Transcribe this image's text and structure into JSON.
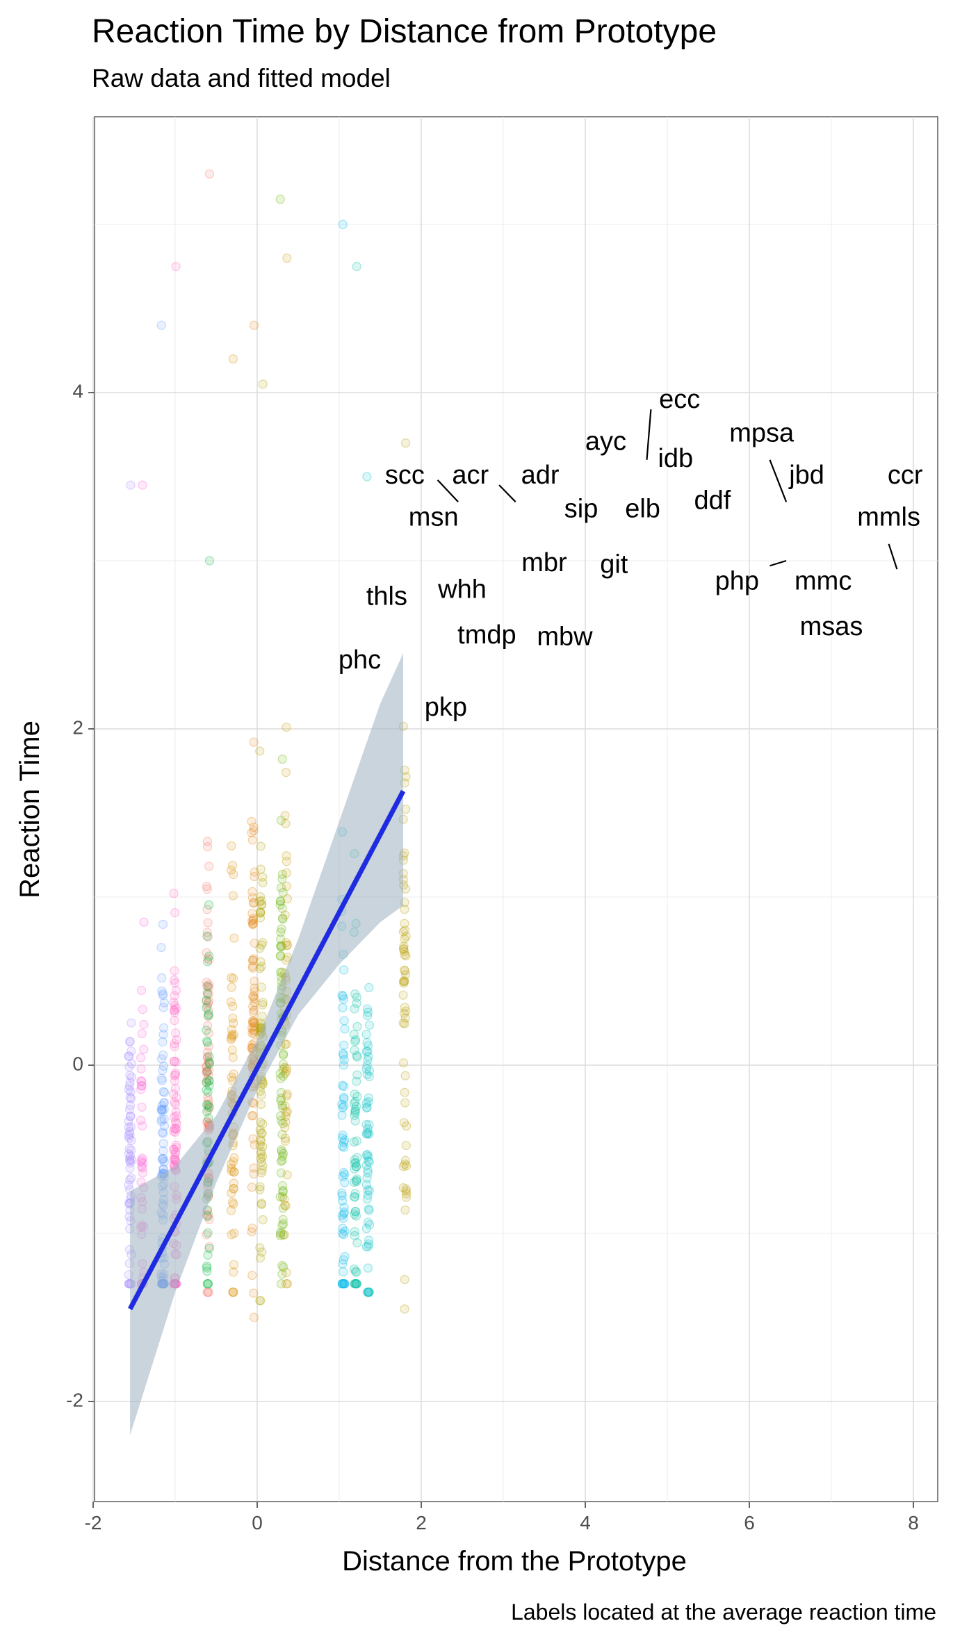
{
  "title": "Reaction Time by Distance from Prototype",
  "subtitle": "Raw data and fitted model",
  "caption": "Labels located at the average reaction time",
  "chart_data": {
    "type": "scatter",
    "title": "Reaction Time by Distance from Prototype",
    "subtitle": "Raw data and fitted model",
    "xlabel": "Distance from the Prototype",
    "ylabel": "Reaction Time",
    "xlim": [
      -2.05,
      8.3
    ],
    "ylim": [
      -2.5,
      5.7
    ],
    "x_ticks": [
      -2,
      0,
      2,
      4,
      6,
      8
    ],
    "y_ticks": [
      -2,
      0,
      2,
      4
    ],
    "grid": true,
    "point_clusters": [
      {
        "x": -1.55,
        "y_center": -0.6,
        "y_sd": 0.55,
        "y_min": -1.3,
        "y_max": 3.45,
        "n": 60,
        "color": "#A58AFF"
      },
      {
        "x": -1.4,
        "y_center": -0.5,
        "y_sd": 0.6,
        "y_min": -1.3,
        "y_max": 3.45,
        "n": 40,
        "color": "#FB61D7"
      },
      {
        "x": -1.15,
        "y_center": -0.55,
        "y_sd": 0.6,
        "y_min": -1.3,
        "y_max": 4.4,
        "n": 80,
        "color": "#619CFF"
      },
      {
        "x": -1.0,
        "y_center": -0.4,
        "y_sd": 0.7,
        "y_min": -1.3,
        "y_max": 4.75,
        "n": 80,
        "color": "#FF61C3"
      },
      {
        "x": -0.6,
        "y_center": -0.1,
        "y_sd": 0.7,
        "y_min": -1.35,
        "y_max": 5.3,
        "n": 80,
        "color": "#F8766D"
      },
      {
        "x": -0.6,
        "y_center": -0.3,
        "y_sd": 0.6,
        "y_min": -1.3,
        "y_max": 3.0,
        "n": 50,
        "color": "#00BA38"
      },
      {
        "x": -0.3,
        "y_center": -0.2,
        "y_sd": 0.65,
        "y_min": -1.35,
        "y_max": 4.2,
        "n": 60,
        "color": "#DB8E00"
      },
      {
        "x": -0.05,
        "y_center": 0.1,
        "y_sd": 0.75,
        "y_min": -1.5,
        "y_max": 4.4,
        "n": 80,
        "color": "#E68613"
      },
      {
        "x": 0.05,
        "y_center": 0.0,
        "y_sd": 0.7,
        "y_min": -1.4,
        "y_max": 4.05,
        "n": 80,
        "color": "#AEA200"
      },
      {
        "x": 0.3,
        "y_center": 0.1,
        "y_sd": 0.75,
        "y_min": -1.3,
        "y_max": 5.15,
        "n": 80,
        "color": "#64B200"
      },
      {
        "x": 0.35,
        "y_center": 0.2,
        "y_sd": 0.8,
        "y_min": -1.3,
        "y_max": 4.8,
        "n": 50,
        "color": "#C49A00"
      },
      {
        "x": 1.05,
        "y_center": -0.35,
        "y_sd": 0.6,
        "y_min": -1.3,
        "y_max": 5.0,
        "n": 60,
        "color": "#00B8E7"
      },
      {
        "x": 1.2,
        "y_center": -0.4,
        "y_sd": 0.6,
        "y_min": -1.3,
        "y_max": 4.75,
        "n": 60,
        "color": "#00C1A3"
      },
      {
        "x": 1.35,
        "y_center": -0.5,
        "y_sd": 0.55,
        "y_min": -1.35,
        "y_max": 3.5,
        "n": 60,
        "color": "#00BFC4"
      },
      {
        "x": 1.8,
        "y_center": 0.3,
        "y_sd": 0.8,
        "y_min": -1.45,
        "y_max": 3.7,
        "n": 60,
        "color": "#B79F00"
      }
    ],
    "fitted_line": {
      "x": [
        -1.55,
        1.78
      ],
      "y": [
        -1.45,
        1.63
      ],
      "color": "#1F2BE0"
    },
    "confidence_band": [
      {
        "x": -1.55,
        "lo": -2.2,
        "hi": -0.75
      },
      {
        "x": -1.0,
        "lo": -1.35,
        "hi": -0.6
      },
      {
        "x": -0.5,
        "lo": -0.7,
        "hi": -0.3
      },
      {
        "x": 0.0,
        "lo": -0.15,
        "hi": 0.15
      },
      {
        "x": 0.5,
        "lo": 0.3,
        "hi": 0.75
      },
      {
        "x": 1.0,
        "lo": 0.6,
        "hi": 1.45
      },
      {
        "x": 1.5,
        "lo": 0.85,
        "hi": 2.15
      },
      {
        "x": 1.78,
        "lo": 0.95,
        "hi": 2.45
      }
    ],
    "band_color": "#9DB0BF",
    "labels": [
      {
        "text": "ecc",
        "x": 5.15,
        "y": 3.95
      },
      {
        "text": "ayc",
        "x": 4.25,
        "y": 3.7
      },
      {
        "text": "idb",
        "x": 5.1,
        "y": 3.6
      },
      {
        "text": "mpsa",
        "x": 6.15,
        "y": 3.75
      },
      {
        "text": "adr",
        "x": 3.45,
        "y": 3.5
      },
      {
        "text": "scc",
        "x": 1.8,
        "y": 3.5
      },
      {
        "text": "acr",
        "x": 2.6,
        "y": 3.5
      },
      {
        "text": "jbd",
        "x": 6.7,
        "y": 3.5
      },
      {
        "text": "ccr",
        "x": 7.9,
        "y": 3.5
      },
      {
        "text": "sip",
        "x": 3.95,
        "y": 3.3
      },
      {
        "text": "elb",
        "x": 4.7,
        "y": 3.3
      },
      {
        "text": "ddf",
        "x": 5.55,
        "y": 3.35
      },
      {
        "text": "msn",
        "x": 2.15,
        "y": 3.25
      },
      {
        "text": "mmls",
        "x": 7.7,
        "y": 3.25
      },
      {
        "text": "mbr",
        "x": 3.5,
        "y": 2.98
      },
      {
        "text": "git",
        "x": 4.35,
        "y": 2.97
      },
      {
        "text": "php",
        "x": 5.85,
        "y": 2.87
      },
      {
        "text": "mmc",
        "x": 6.9,
        "y": 2.87
      },
      {
        "text": "whh",
        "x": 2.5,
        "y": 2.82
      },
      {
        "text": "thls",
        "x": 1.58,
        "y": 2.78
      },
      {
        "text": "tmdp",
        "x": 2.8,
        "y": 2.55
      },
      {
        "text": "mbw",
        "x": 3.75,
        "y": 2.54
      },
      {
        "text": "msas",
        "x": 7.0,
        "y": 2.6
      },
      {
        "text": "phc",
        "x": 1.25,
        "y": 2.4
      },
      {
        "text": "pkp",
        "x": 2.3,
        "y": 2.12
      }
    ],
    "label_segments": [
      {
        "x1": 4.75,
        "y1": 3.6,
        "x2": 4.8,
        "y2": 3.9
      },
      {
        "x1": 2.2,
        "y1": 3.48,
        "x2": 2.45,
        "y2": 3.35
      },
      {
        "x1": 2.95,
        "y1": 3.45,
        "x2": 3.15,
        "y2": 3.35
      },
      {
        "x1": 6.25,
        "y1": 3.6,
        "x2": 6.45,
        "y2": 3.35
      },
      {
        "x1": 6.25,
        "y1": 2.97,
        "x2": 6.45,
        "y2": 3.0
      },
      {
        "x1": 7.7,
        "y1": 3.1,
        "x2": 7.8,
        "y2": 2.95
      }
    ]
  }
}
